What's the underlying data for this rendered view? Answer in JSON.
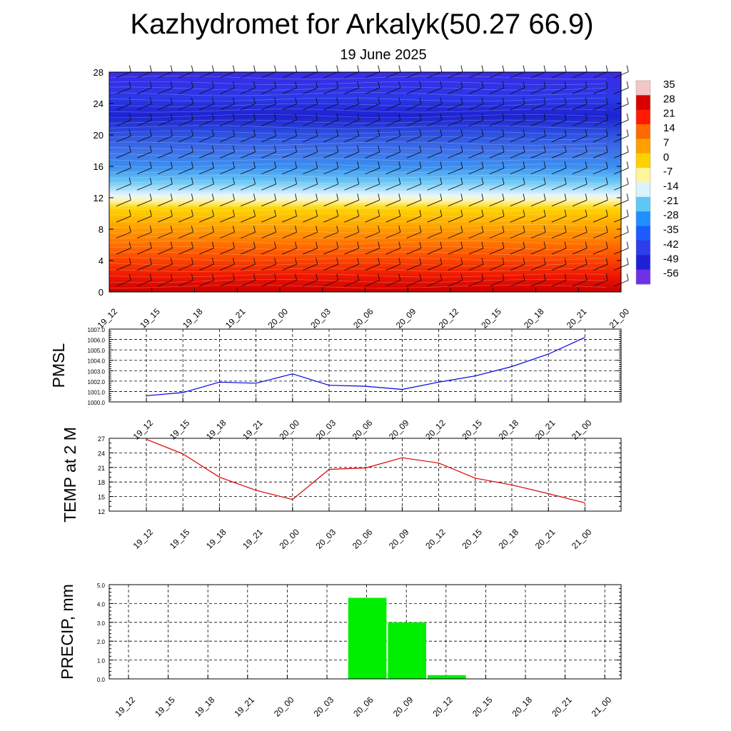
{
  "header": {
    "title": "Kazhydromet for Arkalyk(50.27 66.9)",
    "subtitle": "19 June 2025"
  },
  "colors": {
    "pmsl_line": "#0000dd",
    "temp_line": "#dd0000",
    "precip_bar": "#00ee00",
    "grid": "#000000"
  },
  "chart_data": [
    {
      "type": "heatmap",
      "title": "",
      "xlabel": "",
      "ylabel": "",
      "x_ticks": [
        "19_12",
        "19_15",
        "19_18",
        "19_21",
        "20_00",
        "20_03",
        "20_06",
        "20_09",
        "20_12",
        "20_15",
        "20_18",
        "20_21",
        "21_00"
      ],
      "y_ticks": [
        0,
        4,
        8,
        12,
        16,
        20,
        24,
        28
      ],
      "ylim": [
        0,
        28
      ],
      "colorbar_labels": [
        "35",
        "28",
        "21",
        "14",
        "7",
        "0",
        "-7",
        "-14",
        "-21",
        "-28",
        "-35",
        "-42",
        "-49",
        "-56"
      ],
      "colorbar_colors": [
        "#f4c6c6",
        "#d80000",
        "#ff1a00",
        "#ff6a00",
        "#ffa000",
        "#ffd000",
        "#fff59a",
        "#d8f4ff",
        "#5fc8f5",
        "#1e90ff",
        "#1c5bff",
        "#2e3ee8",
        "#2020d6",
        "#7030e8"
      ],
      "overlay": "wind barbs"
    },
    {
      "type": "line",
      "ylabel": "PMSL",
      "x": [
        "19_12",
        "19_15",
        "19_18",
        "19_21",
        "20_00",
        "20_03",
        "20_06",
        "20_09",
        "20_12",
        "20_15",
        "20_18",
        "20_21",
        "21_00"
      ],
      "y_ticks": [
        "1000.0",
        "1001.0",
        "1002.0",
        "1003.0",
        "1004.0",
        "1005.0",
        "1006.0",
        "1007.0"
      ],
      "ylim": [
        1000,
        1007
      ],
      "values": [
        1000.6,
        1000.9,
        1001.9,
        1001.8,
        1002.7,
        1001.6,
        1001.5,
        1001.2,
        1001.9,
        1002.5,
        1003.4,
        1004.6,
        1006.2
      ],
      "grid": true
    },
    {
      "type": "line",
      "ylabel": "TEMP at 2 M",
      "x": [
        "19_12",
        "19_15",
        "19_18",
        "19_21",
        "20_00",
        "20_03",
        "20_06",
        "20_09",
        "20_12",
        "20_15",
        "20_18",
        "20_21",
        "21_00"
      ],
      "y_ticks": [
        "12",
        "15",
        "18",
        "21",
        "24",
        "27"
      ],
      "ylim": [
        12,
        27
      ],
      "values": [
        26.8,
        23.8,
        19.0,
        16.3,
        14.4,
        20.6,
        20.9,
        23.0,
        21.9,
        18.8,
        17.4,
        15.6,
        13.7
      ],
      "grid": true
    },
    {
      "type": "bar",
      "ylabel": "PRECIP, mm",
      "categories": [
        "19_12",
        "19_15",
        "19_18",
        "19_21",
        "20_00",
        "20_03",
        "20_06",
        "20_09",
        "20_12",
        "20_15",
        "20_18",
        "20_21",
        "21_00"
      ],
      "y_ticks": [
        "0.0",
        "1.0",
        "2.0",
        "3.0",
        "4.0",
        "5.0"
      ],
      "ylim": [
        0,
        5
      ],
      "values": [
        0,
        0,
        0,
        0,
        0,
        0,
        4.3,
        3.0,
        0.2,
        0,
        0,
        0,
        0
      ],
      "grid": true
    }
  ]
}
